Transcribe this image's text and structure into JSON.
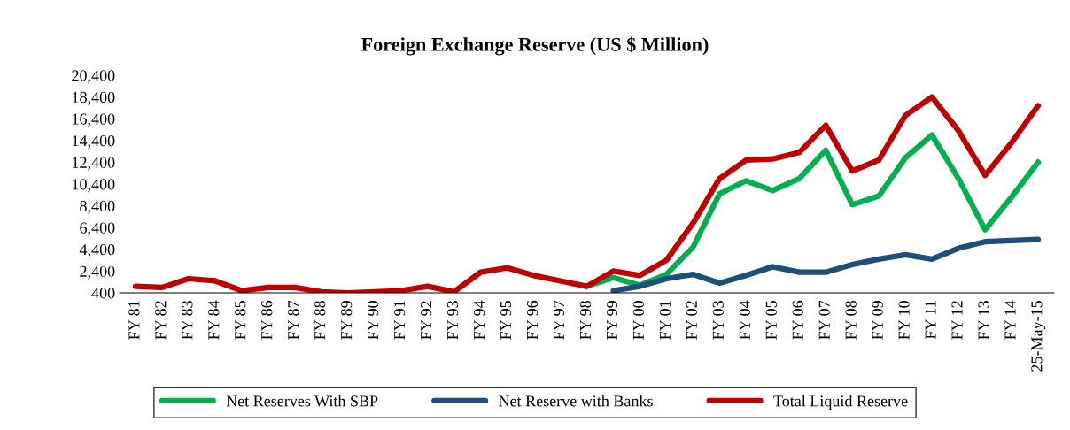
{
  "chart_data": {
    "type": "line",
    "title": "Foreign Exchange Reserve (US $ Million)",
    "categories": [
      "FY 81",
      "FY 82",
      "FY 83",
      "FY 84",
      "FY 85",
      "FY 86",
      "FY 87",
      "FY 88",
      "FY 89",
      "FY 90",
      "FY 91",
      "FY 92",
      "FY 93",
      "FY 94",
      "FY 95",
      "FY 96",
      "FY 97",
      "FY 98",
      "FY 99",
      "FY 00",
      "FY 01",
      "FY 02",
      "FY 03",
      "FY 04",
      "FY 05",
      "FY 06",
      "FY 07",
      "FY 08",
      "FY 09",
      "FY 10",
      "FY 11",
      "FY 12",
      "FY 13",
      "FY 14",
      "25-May-15"
    ],
    "series": [
      {
        "name": "Net Reserves With SBP",
        "color": "#00b050",
        "values": [
          null,
          null,
          null,
          null,
          null,
          null,
          null,
          null,
          null,
          null,
          null,
          null,
          null,
          null,
          null,
          null,
          null,
          1000,
          1800,
          1100,
          2100,
          4600,
          9500,
          10700,
          9800,
          10900,
          13500,
          8500,
          9300,
          12800,
          14900,
          10900,
          6200,
          9200,
          12400
        ]
      },
      {
        "name": "Net Reserve with Banks",
        "color": "#1f4e79",
        "values": [
          null,
          null,
          null,
          null,
          null,
          null,
          null,
          null,
          null,
          null,
          null,
          null,
          null,
          null,
          null,
          null,
          null,
          null,
          600,
          1000,
          1700,
          2100,
          1300,
          2000,
          2800,
          2300,
          2300,
          3000,
          3500,
          3900,
          3500,
          4500,
          5100,
          5200,
          5300
        ]
      },
      {
        "name": "Total Liquid Reserve",
        "color": "#c00000",
        "values": [
          1000,
          900,
          1700,
          1500,
          600,
          900,
          900,
          500,
          400,
          500,
          600,
          1000,
          500,
          2300,
          2700,
          2000,
          1500,
          1000,
          2400,
          2000,
          3400,
          6800,
          10900,
          12600,
          12700,
          13300,
          15800,
          11600,
          12600,
          16700,
          18400,
          15300,
          11200,
          14200,
          17600
        ]
      }
    ],
    "ylim": [
      400,
      20400
    ],
    "yticks": [
      {
        "value": 400,
        "label": "400"
      },
      {
        "value": 2400,
        "label": "2,400"
      },
      {
        "value": 4400,
        "label": "4,400"
      },
      {
        "value": 6400,
        "label": "6,400"
      },
      {
        "value": 8400,
        "label": "8,400"
      },
      {
        "value": 10400,
        "label": "10,400"
      },
      {
        "value": 12400,
        "label": "12,400"
      },
      {
        "value": 14400,
        "label": "14,400"
      },
      {
        "value": 16400,
        "label": "16,400"
      },
      {
        "value": 18400,
        "label": "18,400"
      },
      {
        "value": 20400,
        "label": "20,400"
      }
    ],
    "grid": false,
    "legend": "bottom",
    "marker": "none",
    "line_style": "solid"
  }
}
